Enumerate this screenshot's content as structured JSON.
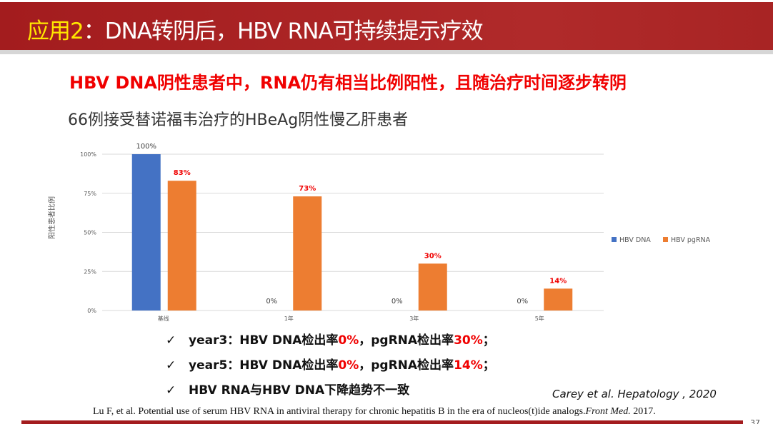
{
  "header": {
    "title_prefix": "应用2",
    "title_rest": "：DNA转阴后，HBV RNA可持续提示疗效"
  },
  "headline": "HBV DNA阴性患者中，RNA仍有相当比例阳性，且随治疗时间逐步转阴",
  "subtitle": "66例接受替诺福韦治疗的HBeAg阴性慢乙肝患者",
  "chart_data": {
    "type": "bar",
    "categories": [
      "基线",
      "1年",
      "3年",
      "5年"
    ],
    "series": [
      {
        "name": "HBV DNA",
        "color": "#4472c4",
        "values": [
          100,
          0,
          0,
          0
        ],
        "labels": [
          "100%",
          "0%",
          "0%",
          "0%"
        ]
      },
      {
        "name": "HBV pgRNA",
        "color": "#ed7d31",
        "values": [
          83,
          73,
          30,
          14
        ],
        "labels": [
          "83%",
          "73%",
          "30%",
          "14%"
        ]
      }
    ],
    "ylabel": "阳性患者比例",
    "ylim": [
      0,
      100
    ],
    "yticks": [
      "0%",
      "25%",
      "50%",
      "75%",
      "100%"
    ],
    "grid": true,
    "legend": "right"
  },
  "bullets": [
    {
      "a": "year3：HBV DNA检出率",
      "b": "0%",
      "c": "，pgRNA检出率",
      "d": "30%",
      "e": "；"
    },
    {
      "a": "year5：HBV DNA检出率",
      "b": "0%",
      "c": "，pgRNA检出率",
      "d": "14%",
      "e": "；"
    },
    {
      "a": "HBV RNA与HBV DNA下降趋势不一致",
      "b": "",
      "c": "",
      "d": "",
      "e": ""
    }
  ],
  "check_symbol": "✓",
  "citation": "Carey et al.  Hepatology , 2020",
  "reference": {
    "text": "Lu F, et al. Potential use of serum HBV RNA in antiviral therapy for chronic hepatitis B in the era of nucleos(t)ide analogs.",
    "journal": "Front Med.",
    "year": " 2017."
  },
  "page_number": "37"
}
